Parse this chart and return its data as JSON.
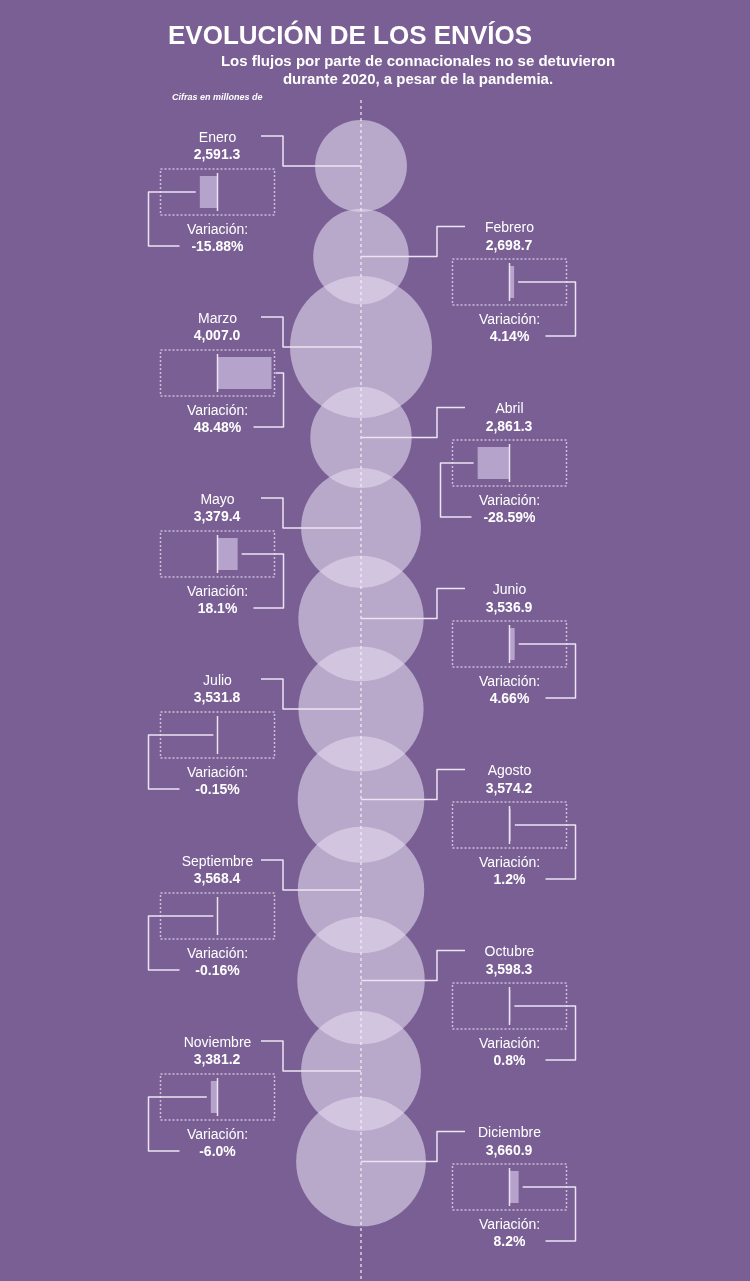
{
  "chart_data": [
    {
      "type": "other",
      "title": "EVOLUCIÓN DE LOS ENVÍOS",
      "subtitle": "Los flujos por parte de connacionales no se detuvieron durante 2020, a pesar de la pandemia.",
      "annotations": [
        "Cifras en millones de"
      ],
      "categories": [
        null,
        null,
        null,
        null,
        null,
        null,
        null,
        null,
        null,
        null,
        null,
        null
      ],
      "values": [
        2591.3,
        2698.7,
        4007.0,
        2861.3,
        3379.4,
        3536.9,
        3531.8,
        3574.2,
        3568.4,
        3598.3,
        3381.2,
        3660.9
      ],
      "value_labels": [
        "2,591.3",
        "2,698.7",
        "4,007.0",
        "2,861.3",
        "3,379.4",
        "3,536.9",
        "3,531.8",
        "3,574.2",
        "3,568.4",
        "3,598.3",
        "3,381.2",
        "3,660.9"
      ],
      "color": "#b8a8ca"
    },
    {
      "type": "bar",
      "orientation": "horizontal",
      "tick_labels": "y",
      "categories": [
        "Enero",
        "Marzo",
        "Mayo",
        "Julio",
        "Septiembre",
        "Noviembre"
      ],
      "values": [
        -15.88,
        48.48,
        18.1,
        -0.15,
        -0.16,
        -6.0
      ],
      "value_labels": [
        "Variación:\n-15.88%",
        "Variación:\n48.48%",
        "Variación:\n18.1%",
        "Variación:\n-0.15%",
        "Variación:\n-0.16%",
        "Variación:\n-6.0%"
      ],
      "color": "#b5a3cb"
    },
    {
      "type": "bar",
      "orientation": "horizontal",
      "tick_labels": "y",
      "categories": [
        "Febrero",
        "Abril",
        "Junio",
        "Agosto",
        "Octubre",
        "Diciembre"
      ],
      "values": [
        4.14,
        -28.59,
        4.66,
        1.2,
        0.8,
        8.2
      ],
      "value_labels": [
        "Variación:\n4.14%",
        "Variación:\n-28.59%",
        "Variación:\n4.66%",
        "Variación:\n1.2%",
        "Variación:\n0.8%",
        "Variación:\n8.2%"
      ],
      "color": "#b5a3cb"
    }
  ]
}
